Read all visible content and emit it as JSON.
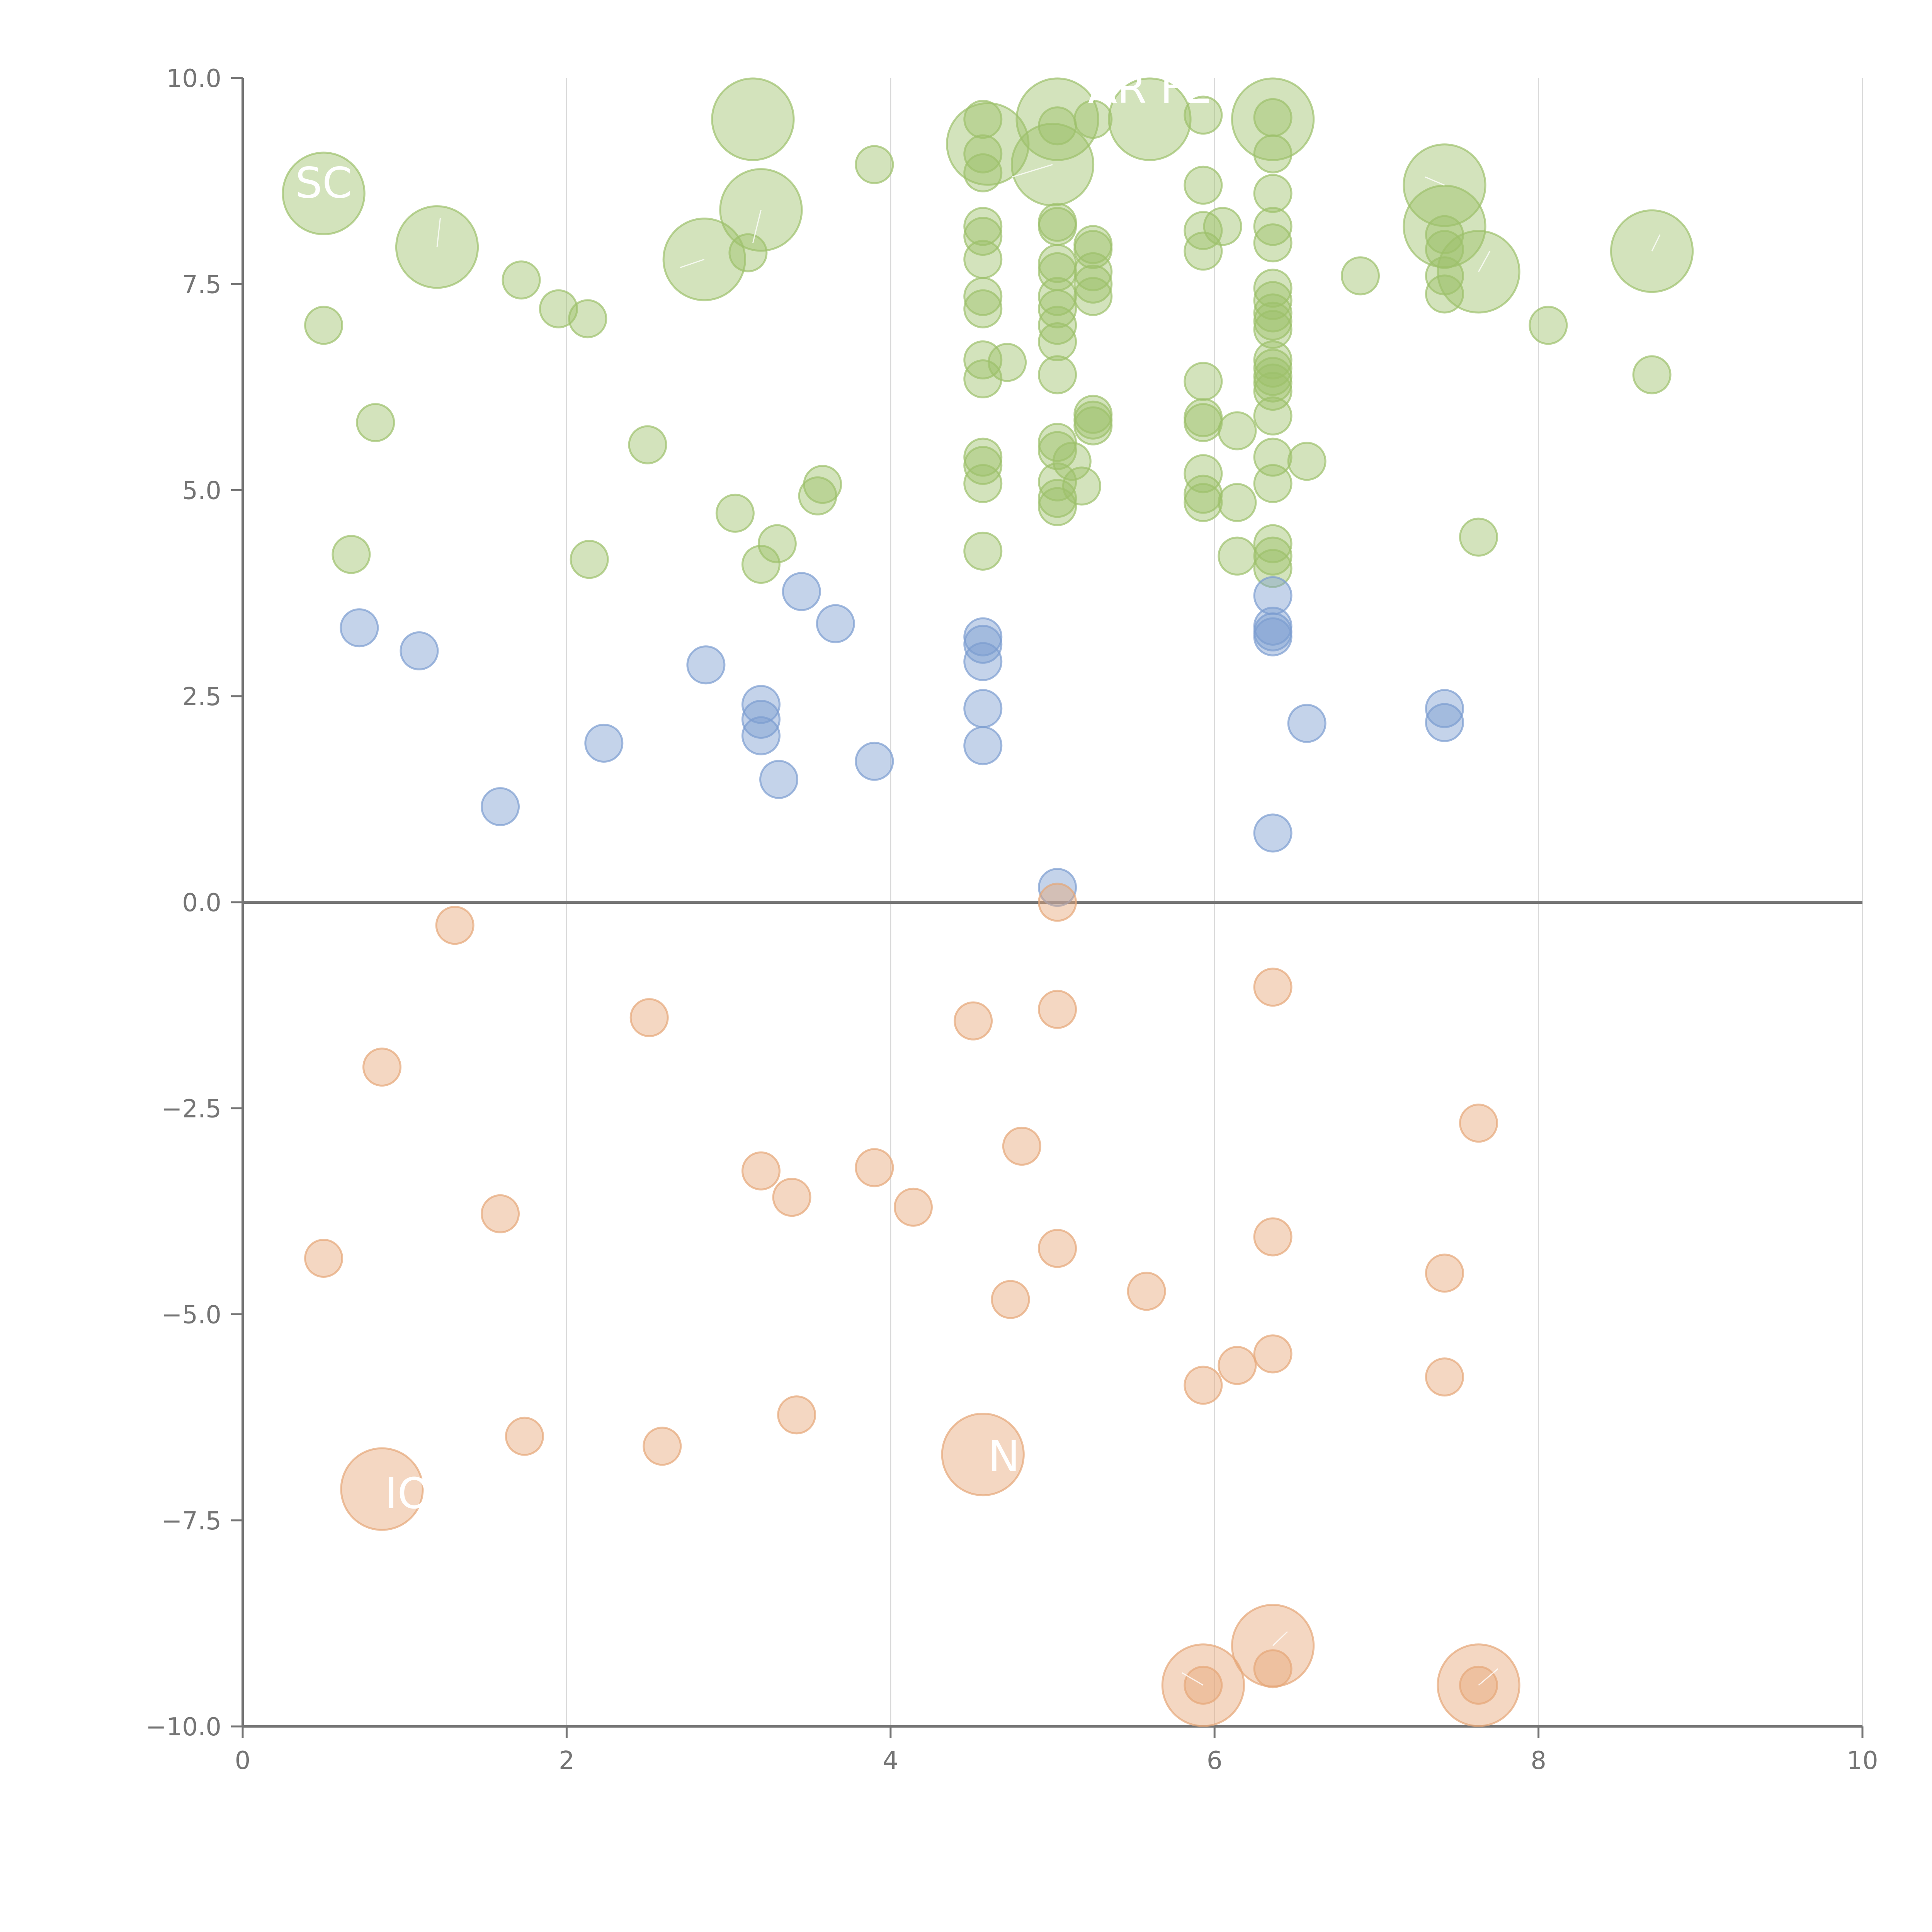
{
  "chart_data": {
    "type": "scatter",
    "title": "",
    "xlabel": "",
    "ylabel": "",
    "xlim": [
      0,
      10
    ],
    "ylim": [
      -10,
      10
    ],
    "x_ticks": [
      "0",
      "2",
      "4",
      "6",
      "8",
      "10"
    ],
    "y_ticks": [
      "10.0",
      "7.5",
      "5.0",
      "2.5",
      "0.0",
      "−2.5",
      "−5.0",
      "−7.5",
      "−10.0"
    ],
    "x_tick_values": [
      0,
      2,
      4,
      6,
      8,
      10
    ],
    "y_tick_values": [
      10,
      7.5,
      5,
      2.5,
      0,
      -2.5,
      -5,
      -7.5,
      -10
    ],
    "grid": "vertical only",
    "zero_line": true,
    "series": [
      {
        "color": "#9dc16b",
        "points": [
          {
            "x": 0.5,
            "y": 8.6,
            "s": 2.2
          },
          {
            "x": 0.5,
            "y": 7.0,
            "s": 1
          },
          {
            "x": 1.2,
            "y": 7.95,
            "s": 2.2
          },
          {
            "x": 1.72,
            "y": 7.55,
            "s": 1
          },
          {
            "x": 1.95,
            "y": 7.2,
            "s": 1
          },
          {
            "x": 2.13,
            "y": 7.08,
            "s": 1
          },
          {
            "x": 0.82,
            "y": 5.82,
            "s": 1
          },
          {
            "x": 0.67,
            "y": 4.22,
            "s": 1
          },
          {
            "x": 2.14,
            "y": 4.16,
            "s": 1
          },
          {
            "x": 2.5,
            "y": 5.55,
            "s": 1
          },
          {
            "x": 2.85,
            "y": 7.8,
            "s": 2.2
          },
          {
            "x": 3.15,
            "y": 9.5,
            "s": 2.2
          },
          {
            "x": 3.2,
            "y": 8.4,
            "s": 2.2
          },
          {
            "x": 3.12,
            "y": 7.88,
            "s": 1
          },
          {
            "x": 3.04,
            "y": 4.72,
            "s": 1
          },
          {
            "x": 3.2,
            "y": 4.1,
            "s": 1
          },
          {
            "x": 3.3,
            "y": 4.35,
            "s": 1
          },
          {
            "x": 3.55,
            "y": 4.93,
            "s": 1
          },
          {
            "x": 3.58,
            "y": 5.07,
            "s": 1
          },
          {
            "x": 3.9,
            "y": 8.95,
            "s": 1
          },
          {
            "x": 4.57,
            "y": 9.5,
            "s": 1
          },
          {
            "x": 4.57,
            "y": 9.08,
            "s": 1
          },
          {
            "x": 4.57,
            "y": 8.85,
            "s": 1
          },
          {
            "x": 4.6,
            "y": 9.2,
            "s": 2.2
          },
          {
            "x": 4.57,
            "y": 8.2,
            "s": 1
          },
          {
            "x": 4.57,
            "y": 8.08,
            "s": 1
          },
          {
            "x": 4.57,
            "y": 7.8,
            "s": 1
          },
          {
            "x": 4.57,
            "y": 7.35,
            "s": 1
          },
          {
            "x": 4.57,
            "y": 7.2,
            "s": 1
          },
          {
            "x": 4.57,
            "y": 6.58,
            "s": 1
          },
          {
            "x": 4.57,
            "y": 6.35,
            "s": 1
          },
          {
            "x": 4.72,
            "y": 6.55,
            "s": 1
          },
          {
            "x": 4.57,
            "y": 5.4,
            "s": 1
          },
          {
            "x": 4.57,
            "y": 5.3,
            "s": 1
          },
          {
            "x": 4.57,
            "y": 5.08,
            "s": 1
          },
          {
            "x": 4.57,
            "y": 4.26,
            "s": 1
          },
          {
            "x": 5.03,
            "y": 9.5,
            "s": 2.2
          },
          {
            "x": 5.0,
            "y": 8.95,
            "s": 2.2
          },
          {
            "x": 5.03,
            "y": 9.42,
            "s": 1
          },
          {
            "x": 5.03,
            "y": 8.25,
            "s": 1
          },
          {
            "x": 5.03,
            "y": 8.2,
            "s": 1
          },
          {
            "x": 5.03,
            "y": 7.75,
            "s": 1
          },
          {
            "x": 5.03,
            "y": 7.65,
            "s": 1
          },
          {
            "x": 5.03,
            "y": 7.35,
            "s": 1
          },
          {
            "x": 5.03,
            "y": 7.2,
            "s": 1
          },
          {
            "x": 5.03,
            "y": 7.0,
            "s": 1
          },
          {
            "x": 5.03,
            "y": 6.8,
            "s": 1
          },
          {
            "x": 5.03,
            "y": 6.4,
            "s": 1
          },
          {
            "x": 5.03,
            "y": 5.58,
            "s": 1
          },
          {
            "x": 5.03,
            "y": 5.48,
            "s": 1
          },
          {
            "x": 5.12,
            "y": 5.35,
            "s": 1
          },
          {
            "x": 5.03,
            "y": 5.1,
            "s": 1
          },
          {
            "x": 5.18,
            "y": 5.05,
            "s": 1
          },
          {
            "x": 5.03,
            "y": 4.9,
            "s": 1
          },
          {
            "x": 5.03,
            "y": 4.8,
            "s": 1
          },
          {
            "x": 5.25,
            "y": 9.5,
            "s": 1
          },
          {
            "x": 5.6,
            "y": 9.5,
            "s": 2.2
          },
          {
            "x": 5.25,
            "y": 7.98,
            "s": 1
          },
          {
            "x": 5.25,
            "y": 7.92,
            "s": 1
          },
          {
            "x": 5.25,
            "y": 7.65,
            "s": 1
          },
          {
            "x": 5.25,
            "y": 7.5,
            "s": 1
          },
          {
            "x": 5.25,
            "y": 7.35,
            "s": 1
          },
          {
            "x": 5.25,
            "y": 5.92,
            "s": 1
          },
          {
            "x": 5.25,
            "y": 5.85,
            "s": 1
          },
          {
            "x": 5.25,
            "y": 5.78,
            "s": 1
          },
          {
            "x": 5.93,
            "y": 9.55,
            "s": 1
          },
          {
            "x": 5.93,
            "y": 8.7,
            "s": 1
          },
          {
            "x": 5.93,
            "y": 8.15,
            "s": 1
          },
          {
            "x": 5.93,
            "y": 7.9,
            "s": 1
          },
          {
            "x": 6.05,
            "y": 8.2,
            "s": 1
          },
          {
            "x": 5.93,
            "y": 6.32,
            "s": 1
          },
          {
            "x": 5.93,
            "y": 5.88,
            "s": 1
          },
          {
            "x": 5.93,
            "y": 5.82,
            "s": 1
          },
          {
            "x": 6.14,
            "y": 5.72,
            "s": 1
          },
          {
            "x": 5.93,
            "y": 5.2,
            "s": 1
          },
          {
            "x": 5.93,
            "y": 4.95,
            "s": 1
          },
          {
            "x": 5.93,
            "y": 4.85,
            "s": 1
          },
          {
            "x": 6.14,
            "y": 4.85,
            "s": 1
          },
          {
            "x": 6.14,
            "y": 4.2,
            "s": 1
          },
          {
            "x": 6.36,
            "y": 9.5,
            "s": 2.2
          },
          {
            "x": 6.36,
            "y": 9.52,
            "s": 1
          },
          {
            "x": 6.36,
            "y": 9.08,
            "s": 1
          },
          {
            "x": 6.36,
            "y": 8.6,
            "s": 1
          },
          {
            "x": 6.36,
            "y": 8.2,
            "s": 1
          },
          {
            "x": 6.36,
            "y": 8.0,
            "s": 1
          },
          {
            "x": 6.36,
            "y": 7.45,
            "s": 1
          },
          {
            "x": 6.36,
            "y": 7.3,
            "s": 1
          },
          {
            "x": 6.36,
            "y": 7.15,
            "s": 1
          },
          {
            "x": 6.36,
            "y": 7.05,
            "s": 1
          },
          {
            "x": 6.36,
            "y": 6.95,
            "s": 1
          },
          {
            "x": 6.36,
            "y": 6.58,
            "s": 1
          },
          {
            "x": 6.36,
            "y": 6.48,
            "s": 1
          },
          {
            "x": 6.36,
            "y": 6.38,
            "s": 1
          },
          {
            "x": 6.36,
            "y": 6.3,
            "s": 1
          },
          {
            "x": 6.36,
            "y": 6.2,
            "s": 1
          },
          {
            "x": 6.36,
            "y": 5.9,
            "s": 1
          },
          {
            "x": 6.36,
            "y": 5.4,
            "s": 1
          },
          {
            "x": 6.57,
            "y": 5.35,
            "s": 1
          },
          {
            "x": 6.36,
            "y": 5.08,
            "s": 1
          },
          {
            "x": 6.36,
            "y": 4.35,
            "s": 1
          },
          {
            "x": 6.36,
            "y": 4.2,
            "s": 1
          },
          {
            "x": 6.36,
            "y": 4.05,
            "s": 1
          },
          {
            "x": 6.9,
            "y": 7.6,
            "s": 1
          },
          {
            "x": 7.42,
            "y": 8.7,
            "s": 2.2
          },
          {
            "x": 7.42,
            "y": 8.2,
            "s": 2.2
          },
          {
            "x": 7.42,
            "y": 8.1,
            "s": 1
          },
          {
            "x": 7.42,
            "y": 7.92,
            "s": 1
          },
          {
            "x": 7.42,
            "y": 7.6,
            "s": 1
          },
          {
            "x": 7.42,
            "y": 7.38,
            "s": 1
          },
          {
            "x": 7.63,
            "y": 7.65,
            "s": 2.2
          },
          {
            "x": 7.63,
            "y": 4.43,
            "s": 1
          },
          {
            "x": 8.06,
            "y": 7.0,
            "s": 1
          },
          {
            "x": 8.7,
            "y": 7.9,
            "s": 2.2
          },
          {
            "x": 8.7,
            "y": 6.4,
            "s": 1
          }
        ]
      },
      {
        "color": "#7c9dd0",
        "points": [
          {
            "x": 0.72,
            "y": 3.33,
            "s": 1
          },
          {
            "x": 1.09,
            "y": 3.05,
            "s": 1
          },
          {
            "x": 1.59,
            "y": 1.16,
            "s": 1
          },
          {
            "x": 2.23,
            "y": 1.93,
            "s": 1
          },
          {
            "x": 2.86,
            "y": 2.88,
            "s": 1
          },
          {
            "x": 3.2,
            "y": 2.4,
            "s": 1
          },
          {
            "x": 3.2,
            "y": 2.22,
            "s": 1
          },
          {
            "x": 3.2,
            "y": 2.02,
            "s": 1
          },
          {
            "x": 3.31,
            "y": 1.49,
            "s": 1
          },
          {
            "x": 3.45,
            "y": 3.77,
            "s": 1
          },
          {
            "x": 3.66,
            "y": 3.38,
            "s": 1
          },
          {
            "x": 3.9,
            "y": 1.71,
            "s": 1
          },
          {
            "x": 4.57,
            "y": 3.22,
            "s": 1
          },
          {
            "x": 4.57,
            "y": 3.13,
            "s": 1
          },
          {
            "x": 4.57,
            "y": 2.92,
            "s": 1
          },
          {
            "x": 4.57,
            "y": 2.35,
            "s": 1
          },
          {
            "x": 4.57,
            "y": 1.9,
            "s": 1
          },
          {
            "x": 5.03,
            "y": 0.18,
            "s": 1
          },
          {
            "x": 6.36,
            "y": 3.72,
            "s": 1
          },
          {
            "x": 6.36,
            "y": 3.35,
            "s": 1
          },
          {
            "x": 6.36,
            "y": 3.28,
            "s": 1
          },
          {
            "x": 6.36,
            "y": 3.22,
            "s": 1
          },
          {
            "x": 6.57,
            "y": 2.17,
            "s": 1
          },
          {
            "x": 6.36,
            "y": 0.84,
            "s": 1
          },
          {
            "x": 7.42,
            "y": 2.35,
            "s": 1
          },
          {
            "x": 7.42,
            "y": 2.18,
            "s": 1
          }
        ]
      },
      {
        "color": "#e6a678",
        "points": [
          {
            "x": 1.31,
            "y": -0.28,
            "s": 1
          },
          {
            "x": 0.86,
            "y": -2.0,
            "s": 1
          },
          {
            "x": 0.5,
            "y": -4.32,
            "s": 1
          },
          {
            "x": 1.59,
            "y": -3.78,
            "s": 1
          },
          {
            "x": 1.74,
            "y": -6.48,
            "s": 1
          },
          {
            "x": 0.86,
            "y": -7.12,
            "s": 2.2
          },
          {
            "x": 2.51,
            "y": -1.4,
            "s": 1
          },
          {
            "x": 2.59,
            "y": -6.6,
            "s": 1
          },
          {
            "x": 3.2,
            "y": -3.26,
            "s": 1
          },
          {
            "x": 3.39,
            "y": -3.58,
            "s": 1
          },
          {
            "x": 3.42,
            "y": -6.22,
            "s": 1
          },
          {
            "x": 3.9,
            "y": -3.22,
            "s": 1
          },
          {
            "x": 4.14,
            "y": -3.7,
            "s": 1
          },
          {
            "x": 4.51,
            "y": -1.44,
            "s": 1
          },
          {
            "x": 4.57,
            "y": -6.7,
            "s": 2.2
          },
          {
            "x": 4.74,
            "y": -4.82,
            "s": 1
          },
          {
            "x": 4.81,
            "y": -2.96,
            "s": 1
          },
          {
            "x": 5.03,
            "y": 0.0,
            "s": 1
          },
          {
            "x": 5.03,
            "y": -1.3,
            "s": 1
          },
          {
            "x": 5.03,
            "y": -4.2,
            "s": 1
          },
          {
            "x": 5.58,
            "y": -4.72,
            "s": 1
          },
          {
            "x": 5.93,
            "y": -5.86,
            "s": 1
          },
          {
            "x": 5.93,
            "y": -9.5,
            "s": 2.2
          },
          {
            "x": 5.93,
            "y": -9.5,
            "s": 1
          },
          {
            "x": 6.14,
            "y": -5.62,
            "s": 1
          },
          {
            "x": 6.36,
            "y": -1.03,
            "s": 1
          },
          {
            "x": 6.36,
            "y": -4.06,
            "s": 1
          },
          {
            "x": 6.36,
            "y": -5.48,
            "s": 1
          },
          {
            "x": 6.36,
            "y": -9.02,
            "s": 2.2
          },
          {
            "x": 6.36,
            "y": -9.3,
            "s": 1
          },
          {
            "x": 7.42,
            "y": -4.5,
            "s": 1
          },
          {
            "x": 7.42,
            "y": -5.76,
            "s": 1
          },
          {
            "x": 7.63,
            "y": -2.68,
            "s": 1
          },
          {
            "x": 7.63,
            "y": -9.5,
            "s": 2.2
          },
          {
            "x": 7.63,
            "y": -9.5,
            "s": 1
          }
        ]
      }
    ],
    "labels": [
      {
        "text": "SC",
        "x": 0.5,
        "y": 8.55
      },
      {
        "text": "AR FE",
        "x": 5.6,
        "y": 9.7
      },
      {
        "text": "IO",
        "x": 1.02,
        "y": -7.35
      },
      {
        "text": "N",
        "x": 4.7,
        "y": -6.9
      }
    ]
  }
}
